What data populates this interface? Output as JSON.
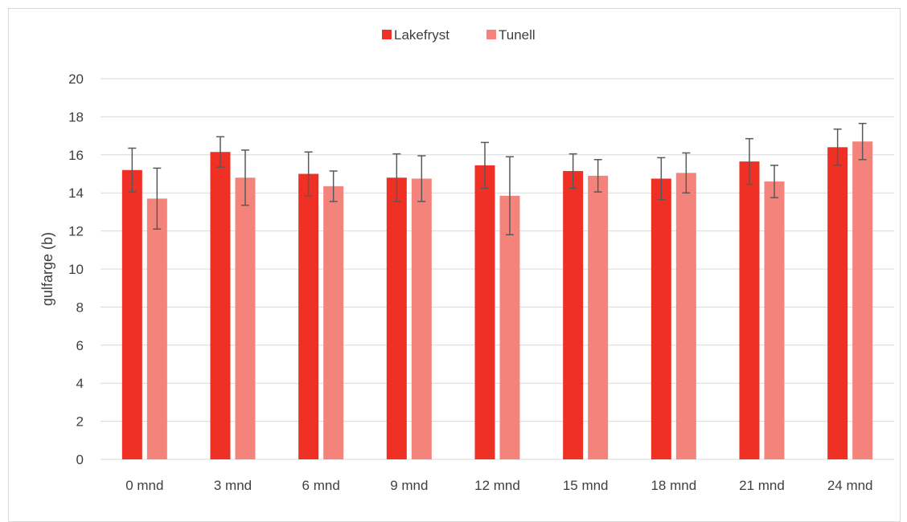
{
  "chart_data": {
    "type": "bar",
    "title": "",
    "xlabel": "",
    "ylabel": "gulfarge (b)",
    "ylim": [
      0,
      20
    ],
    "yticks": [
      0,
      2,
      4,
      6,
      8,
      10,
      12,
      14,
      16,
      18,
      20
    ],
    "grid": true,
    "legend_position": "top",
    "categories": [
      "0 mnd",
      "3 mnd",
      "6 mnd",
      "9 mnd",
      "12 mnd",
      "15 mnd",
      "18 mnd",
      "21 mnd",
      "24 mnd"
    ],
    "series": [
      {
        "name": "Lakefryst",
        "color": "#ee3124",
        "values": [
          15.2,
          16.15,
          15.0,
          14.8,
          15.45,
          15.15,
          14.75,
          15.65,
          16.4
        ],
        "error": [
          1.15,
          0.8,
          1.15,
          1.25,
          1.2,
          0.9,
          1.1,
          1.2,
          0.95
        ]
      },
      {
        "name": "Tunell",
        "color": "#f4847b",
        "values": [
          13.7,
          14.8,
          14.35,
          14.75,
          13.85,
          14.9,
          15.05,
          14.6,
          16.7
        ],
        "error": [
          1.6,
          1.45,
          0.8,
          1.2,
          2.05,
          0.85,
          1.05,
          0.85,
          0.95
        ]
      }
    ],
    "colors": {
      "grid": "#d9d9d9",
      "error_bar": "#595959",
      "text": "#404040"
    }
  }
}
